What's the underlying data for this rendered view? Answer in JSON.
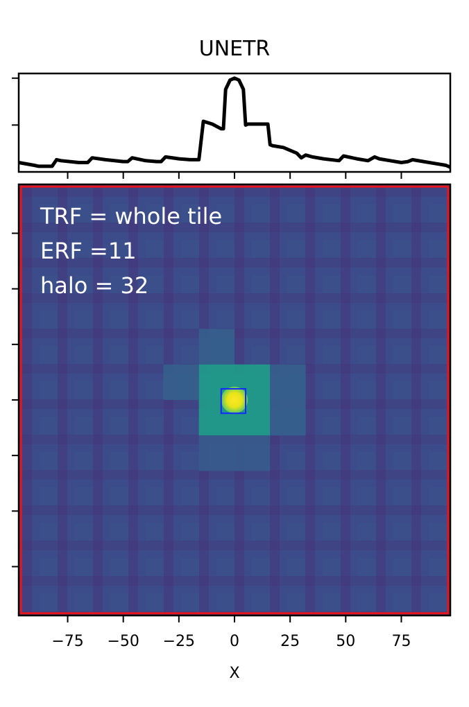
{
  "chart_data": {
    "type": "heatmap",
    "title": "UNETR",
    "xlabel": "X",
    "ylabel": "",
    "xlim": [
      -97,
      97
    ],
    "ylim": [
      -97,
      97
    ],
    "x_ticks": [
      -75,
      -50,
      -25,
      0,
      25,
      50,
      75
    ],
    "x_tick_labels": [
      "−75",
      "−50",
      "−25",
      "0",
      "25",
      "50",
      "75"
    ],
    "y_ticks": [
      75,
      50,
      25,
      0,
      -25,
      -50,
      -75
    ],
    "annotations": [
      "TRF = whole tile",
      "ERF =11",
      "halo = 32"
    ],
    "colormap": "viridis",
    "boxes": [
      {
        "name": "TRF",
        "color": "#e8141c",
        "x0": -96,
        "x1": 96,
        "y0": -96,
        "y1": 96
      },
      {
        "name": "ERF",
        "color": "#1428ff",
        "x0": -6,
        "x1": 5,
        "y0": -6,
        "y1": 5
      }
    ],
    "heatmap_blocks": [
      {
        "x0": -16,
        "x1": 16,
        "y0": -16,
        "y1": 16,
        "value": 0.55
      },
      {
        "x0": -32,
        "x1": -16,
        "y0": 0,
        "y1": 16,
        "value": 0.3
      },
      {
        "x0": 16,
        "x1": 32,
        "y0": -16,
        "y1": 16,
        "value": 0.3
      },
      {
        "x0": -16,
        "x1": 0,
        "y0": 16,
        "y1": 32,
        "value": 0.3
      },
      {
        "x0": -16,
        "x1": 16,
        "y0": -32,
        "y1": -16,
        "value": 0.28
      }
    ],
    "peak": {
      "x": 0,
      "y": 0,
      "value": 1.0
    },
    "profile": {
      "x": [
        -97,
        -90,
        -88,
        -85,
        -82,
        -80,
        -78,
        -70,
        -66,
        -64,
        -58,
        -50,
        -48,
        -46,
        -40,
        -35,
        -33,
        -31,
        -25,
        -20,
        -18,
        -16,
        -14,
        -10,
        -6,
        -5,
        -4,
        -2,
        0,
        2,
        4,
        5,
        6,
        10,
        15,
        16,
        17,
        22,
        28,
        30,
        32,
        35,
        40,
        47,
        49,
        55,
        60,
        63,
        65,
        70,
        75,
        78,
        80,
        85,
        90,
        95,
        97
      ],
      "y": [
        0.1,
        0.07,
        0.06,
        0.06,
        0.06,
        0.13,
        0.12,
        0.1,
        0.1,
        0.15,
        0.13,
        0.11,
        0.11,
        0.15,
        0.12,
        0.11,
        0.11,
        0.16,
        0.14,
        0.13,
        0.13,
        0.13,
        0.54,
        0.51,
        0.46,
        0.46,
        0.88,
        0.98,
        1.0,
        0.98,
        0.88,
        0.5,
        0.51,
        0.51,
        0.51,
        0.29,
        0.28,
        0.26,
        0.2,
        0.15,
        0.18,
        0.16,
        0.14,
        0.12,
        0.17,
        0.14,
        0.12,
        0.16,
        0.14,
        0.12,
        0.1,
        0.11,
        0.13,
        0.11,
        0.09,
        0.07,
        0.05
      ]
    },
    "profile_ylim": [
      0,
      1.05
    ],
    "profile_y_ticks": [
      0.5,
      1.0
    ],
    "grid": false,
    "legend": "none"
  }
}
